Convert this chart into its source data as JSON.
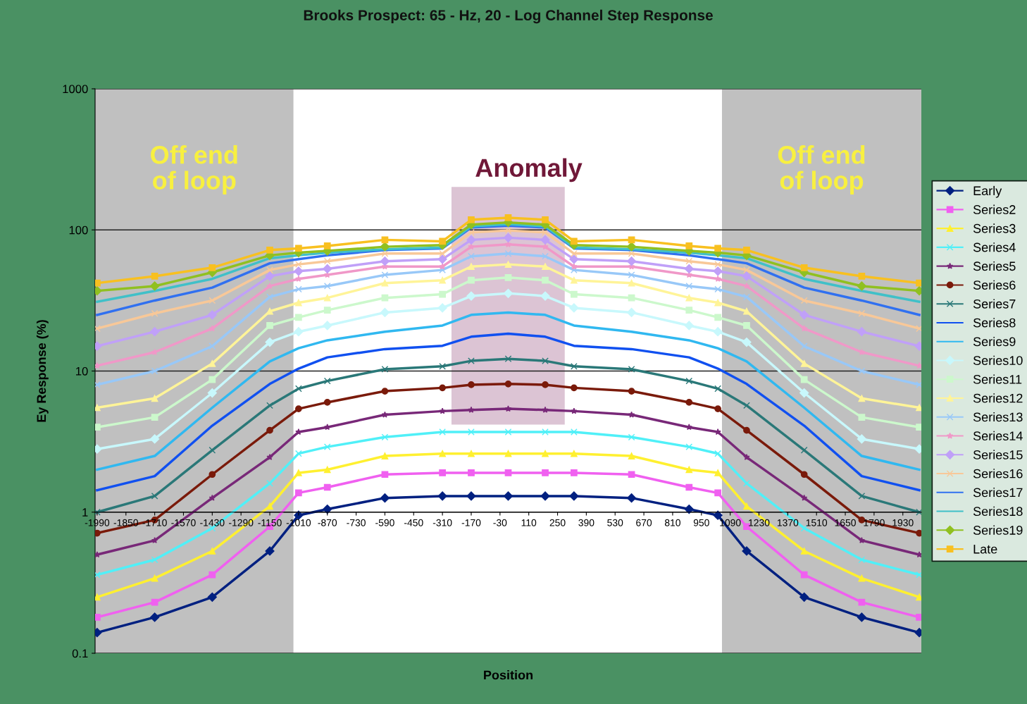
{
  "chart_data": {
    "type": "line",
    "title": "Brooks Prospect: 65 - Hz, 20 - Log Channel Step Response",
    "xlabel": "Position",
    "ylabel": "Ey Response (%)",
    "x": [
      -1990,
      -1710,
      -1430,
      -1150,
      -1010,
      -870,
      -590,
      -310,
      -170,
      10,
      190,
      330,
      610,
      890,
      1030,
      1170,
      1450,
      1730,
      2010
    ],
    "xlim": [
      -2000,
      2020
    ],
    "xticks": [
      -1990,
      -1850,
      -1710,
      -1570,
      -1430,
      -1290,
      -1150,
      -1010,
      -870,
      -730,
      -590,
      -450,
      -310,
      -170,
      -30,
      110,
      250,
      390,
      530,
      670,
      810,
      950,
      1090,
      1230,
      1370,
      1510,
      1650,
      1790,
      1930
    ],
    "ylim": [
      0.1,
      1000
    ],
    "yticks": [
      0.1,
      1,
      10,
      100,
      1000
    ],
    "log": "y",
    "grid": "y",
    "legend": "right",
    "line_style": "solid",
    "series": [
      {
        "name": "Early",
        "color": "#002080",
        "marker": "diamond",
        "values": [
          0.14,
          0.18,
          0.25,
          0.53,
          0.95,
          1.05,
          1.26,
          1.3,
          1.3,
          1.3,
          1.3,
          1.3,
          1.26,
          1.05,
          0.95,
          0.53,
          0.25,
          0.18,
          0.14
        ]
      },
      {
        "name": "Series2",
        "color": "#f060f0",
        "marker": "square",
        "values": [
          0.18,
          0.23,
          0.36,
          0.79,
          1.37,
          1.5,
          1.85,
          1.9,
          1.9,
          1.9,
          1.9,
          1.9,
          1.85,
          1.5,
          1.37,
          0.79,
          0.36,
          0.23,
          0.18
        ]
      },
      {
        "name": "Series3",
        "color": "#fff030",
        "marker": "triangle",
        "values": [
          0.25,
          0.34,
          0.53,
          1.1,
          1.9,
          2.0,
          2.5,
          2.6,
          2.6,
          2.6,
          2.6,
          2.6,
          2.5,
          2.0,
          1.9,
          1.1,
          0.53,
          0.34,
          0.25
        ]
      },
      {
        "name": "Series4",
        "color": "#50f0f8",
        "marker": "cross",
        "values": [
          0.36,
          0.46,
          0.77,
          1.6,
          2.6,
          2.9,
          3.4,
          3.7,
          3.7,
          3.7,
          3.7,
          3.7,
          3.4,
          2.9,
          2.6,
          1.6,
          0.77,
          0.46,
          0.36
        ]
      },
      {
        "name": "Series5",
        "color": "#782878",
        "marker": "star",
        "values": [
          0.5,
          0.63,
          1.26,
          2.45,
          3.7,
          4.0,
          4.9,
          5.2,
          5.3,
          5.4,
          5.3,
          5.2,
          4.9,
          4.0,
          3.7,
          2.45,
          1.26,
          0.63,
          0.5
        ]
      },
      {
        "name": "Series6",
        "color": "#7a1a0a",
        "marker": "circle",
        "values": [
          0.71,
          0.88,
          1.85,
          3.8,
          5.4,
          6.0,
          7.2,
          7.6,
          8.0,
          8.1,
          8.0,
          7.6,
          7.2,
          6.0,
          5.4,
          3.8,
          1.85,
          0.88,
          0.71
        ]
      },
      {
        "name": "Series7",
        "color": "#2a7878",
        "marker": "cross",
        "values": [
          1.0,
          1.3,
          2.75,
          5.7,
          7.5,
          8.5,
          10.3,
          10.8,
          11.8,
          12.2,
          11.8,
          10.8,
          10.3,
          8.5,
          7.5,
          5.7,
          2.75,
          1.3,
          1.0
        ]
      },
      {
        "name": "Series8",
        "color": "#1050f0",
        "marker": "none",
        "values": [
          1.43,
          1.8,
          4.1,
          8.1,
          10.4,
          12.5,
          14.3,
          15.1,
          17.5,
          18.4,
          17.5,
          15.1,
          14.3,
          12.5,
          10.4,
          8.1,
          4.1,
          1.8,
          1.43
        ]
      },
      {
        "name": "Series9",
        "color": "#30b8f0",
        "marker": "none",
        "values": [
          2.0,
          2.5,
          5.5,
          11.7,
          14.5,
          16.5,
          19,
          21,
          25,
          26,
          25,
          21,
          19,
          16.5,
          14.5,
          11.7,
          5.5,
          2.5,
          2.0
        ]
      },
      {
        "name": "Series10",
        "color": "#c8f8fc",
        "marker": "diamond",
        "values": [
          2.8,
          3.3,
          7.0,
          16,
          19,
          21,
          26,
          28,
          34,
          35.5,
          34,
          28,
          26,
          21,
          19,
          16,
          7.0,
          3.3,
          2.8
        ]
      },
      {
        "name": "Series11",
        "color": "#ccf8cc",
        "marker": "square",
        "values": [
          4.0,
          4.7,
          8.7,
          21,
          24,
          27,
          33,
          35,
          44,
          46,
          44,
          35,
          33,
          27,
          24,
          21,
          8.7,
          4.7,
          4.0
        ]
      },
      {
        "name": "Series12",
        "color": "#fff498",
        "marker": "triangle",
        "values": [
          5.5,
          6.4,
          11.3,
          26.5,
          30.5,
          33,
          42,
          44,
          55,
          57,
          55,
          44,
          42,
          33,
          30.5,
          26.5,
          11.3,
          6.4,
          5.5
        ]
      },
      {
        "name": "Series13",
        "color": "#98c8f8",
        "marker": "cross",
        "values": [
          8.0,
          10,
          15,
          33.5,
          38,
          40,
          48,
          52,
          65,
          68,
          65,
          52,
          48,
          40,
          38,
          33.5,
          15,
          10,
          8.0
        ]
      },
      {
        "name": "Series14",
        "color": "#f098c8",
        "marker": "star",
        "values": [
          10.9,
          13.6,
          20,
          40,
          45,
          48,
          55,
          55,
          76,
          79,
          76,
          55,
          55,
          48,
          45,
          40,
          20,
          13.6,
          10.9
        ]
      },
      {
        "name": "Series15",
        "color": "#c0a0f8",
        "marker": "diamond",
        "values": [
          15,
          19,
          25,
          47,
          51,
          53,
          60,
          62,
          85,
          88,
          85,
          62,
          60,
          53,
          51,
          47,
          25,
          19,
          15
        ]
      },
      {
        "name": "Series16",
        "color": "#f8c898",
        "marker": "cross",
        "values": [
          20,
          25.6,
          31.6,
          52,
          57,
          60,
          68,
          68,
          96,
          99,
          96,
          68,
          68,
          60,
          57,
          52,
          31.6,
          25.6,
          20
        ]
      },
      {
        "name": "Series17",
        "color": "#3070f0",
        "marker": "none",
        "values": [
          25,
          31.6,
          39,
          58,
          62,
          66,
          72,
          74,
          104,
          107,
          104,
          74,
          72,
          66,
          62,
          58,
          39,
          31.6,
          25
        ]
      },
      {
        "name": "Series18",
        "color": "#40c0c8",
        "marker": "none",
        "values": [
          31,
          37,
          45,
          63,
          66,
          69,
          73,
          75,
          106,
          110,
          106,
          75,
          73,
          69,
          66,
          63,
          45,
          37,
          31
        ]
      },
      {
        "name": "Series19",
        "color": "#90c020",
        "marker": "diamond",
        "values": [
          37,
          40,
          50,
          66,
          69,
          71,
          76,
          78,
          109,
          113,
          109,
          78,
          76,
          71,
          69,
          66,
          50,
          40,
          37
        ]
      },
      {
        "name": "Late",
        "color": "#f8c020",
        "marker": "square",
        "values": [
          42,
          47,
          54,
          72,
          74,
          77,
          85,
          83,
          118,
          122,
          118,
          83,
          85,
          77,
          74,
          72,
          54,
          47,
          42
        ]
      }
    ],
    "bands": [
      {
        "axis": "x",
        "from": -2000,
        "to": -1035,
        "label": "Off end\nof loop",
        "color": "#c0c0c0"
      },
      {
        "axis": "x",
        "from": 1050,
        "to": 2020,
        "label": "Off end\nof loop",
        "color": "#c0c0c0"
      },
      {
        "axis": "x",
        "from": -266,
        "to": 285,
        "label": "Anomaly",
        "color": "#dcc4d4"
      }
    ]
  }
}
